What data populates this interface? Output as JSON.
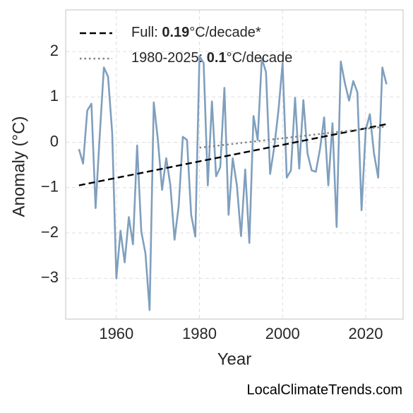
{
  "chart_data": {
    "type": "line",
    "x_label": "Year",
    "y_label": "Anomaly (°C)",
    "x": [
      1951,
      1952,
      1953,
      1954,
      1955,
      1956,
      1957,
      1958,
      1959,
      1960,
      1961,
      1962,
      1963,
      1964,
      1965,
      1966,
      1967,
      1968,
      1969,
      1970,
      1971,
      1972,
      1973,
      1974,
      1975,
      1976,
      1977,
      1978,
      1979,
      1980,
      1981,
      1982,
      1983,
      1984,
      1985,
      1986,
      1987,
      1988,
      1989,
      1990,
      1991,
      1992,
      1993,
      1994,
      1995,
      1996,
      1997,
      1998,
      1999,
      2000,
      2001,
      2002,
      2003,
      2004,
      2005,
      2006,
      2007,
      2008,
      2009,
      2010,
      2011,
      2012,
      2013,
      2014,
      2015,
      2016,
      2017,
      2018,
      2019,
      2020,
      2021,
      2022,
      2023,
      2024,
      2025
    ],
    "values": [
      -0.15,
      -0.47,
      0.7,
      0.85,
      -1.45,
      0.15,
      1.65,
      1.45,
      0.2,
      -3.0,
      -1.95,
      -2.65,
      -1.65,
      -2.25,
      -0.07,
      -1.97,
      -2.45,
      -3.7,
      0.88,
      0.05,
      -1.05,
      -0.35,
      -0.95,
      -2.15,
      -1.4,
      0.12,
      0.05,
      -1.6,
      -2.08,
      1.9,
      1.75,
      -0.95,
      0.9,
      -0.75,
      -0.55,
      1.2,
      -1.6,
      -0.35,
      -0.95,
      -2.07,
      -0.6,
      -2.22,
      0.58,
      0.05,
      1.85,
      1.55,
      -0.7,
      -0.1,
      0.7,
      1.75,
      -0.78,
      -0.62,
      0.98,
      -0.58,
      0.93,
      -0.25,
      -0.62,
      -0.65,
      -0.15,
      0.55,
      -0.95,
      0.42,
      -1.87,
      1.78,
      1.3,
      0.92,
      1.35,
      1.1,
      -1.5,
      0.27,
      0.62,
      -0.25,
      -0.78,
      1.65,
      1.28
    ],
    "color": "#7f9fbe",
    "trend_lines": [
      {
        "label_parts": [
          "Full: ",
          "0.19",
          "°C/decade*"
        ],
        "color": "#000000",
        "dash": "dashed",
        "x": [
          1951,
          2025
        ],
        "values": [
          -0.95,
          0.4
        ]
      },
      {
        "label_parts": [
          "1980-2025: ",
          "0.1",
          "°C/decade"
        ],
        "color": "#808080",
        "dash": "dotted",
        "x": [
          1980,
          2025
        ],
        "values": [
          -0.12,
          0.35
        ]
      }
    ],
    "xlim": [
      1947.8,
      2029.0
    ],
    "ylim": [
      -3.9,
      2.92
    ],
    "xticks": [
      1960,
      1980,
      2000,
      2020
    ],
    "yticks": [
      {
        "value": -3,
        "label": "−3"
      },
      {
        "value": -2,
        "label": "−2"
      },
      {
        "value": -1,
        "label": "−1"
      },
      0,
      1,
      2
    ],
    "grid": true,
    "source": "LocalClimateTrends.com"
  }
}
